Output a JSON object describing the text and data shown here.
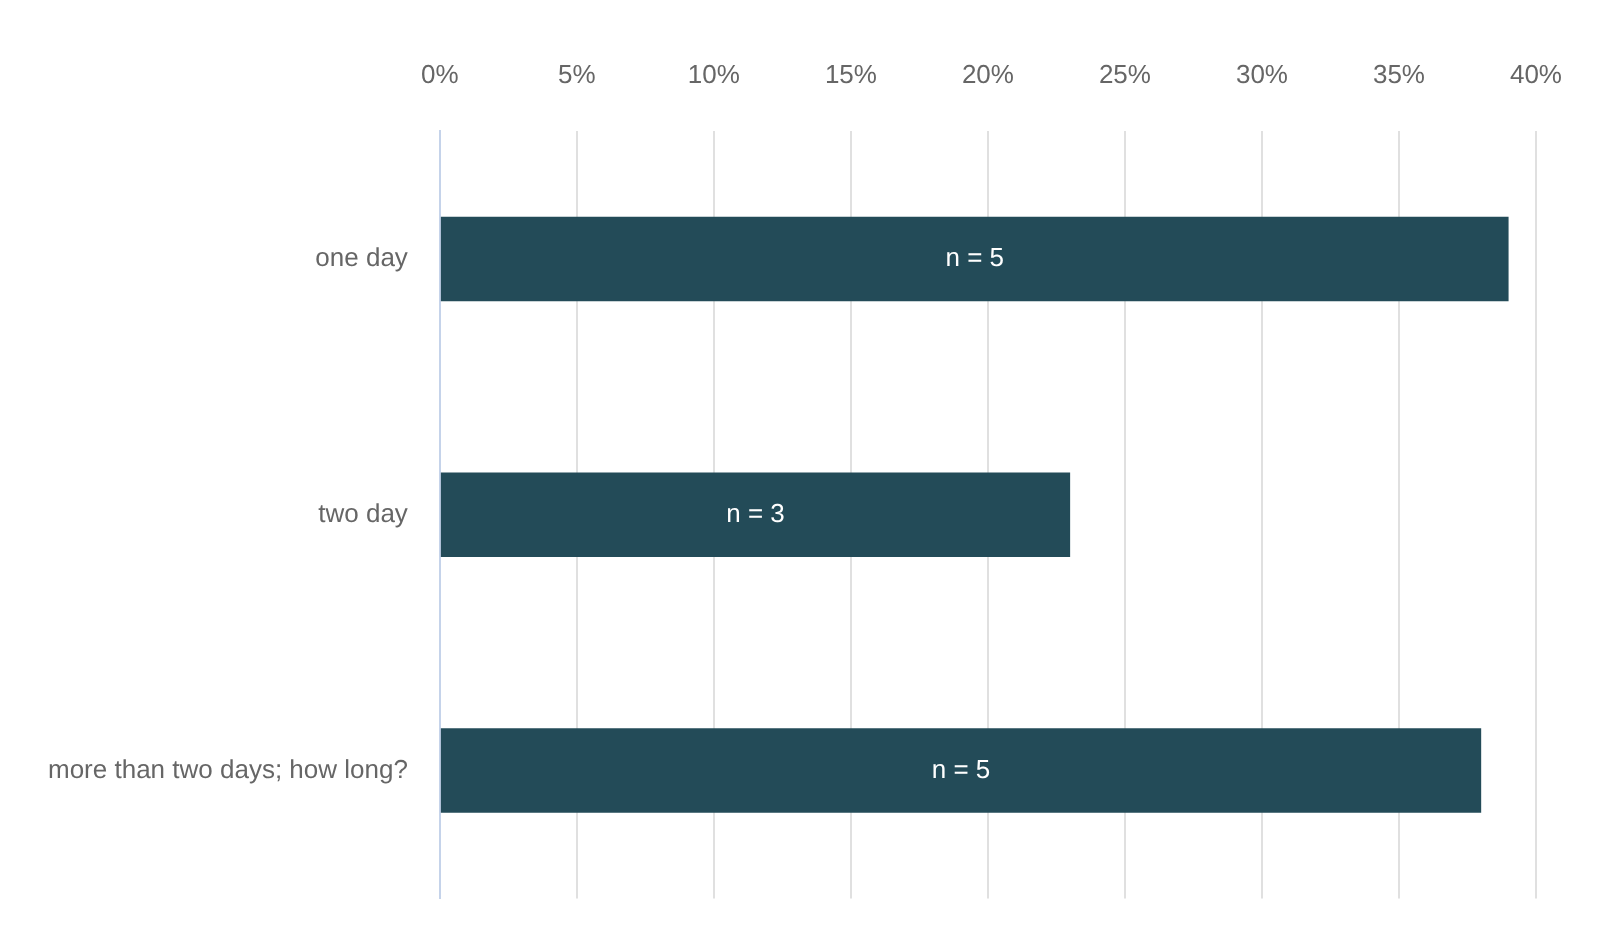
{
  "chart_data": {
    "type": "bar",
    "orientation": "horizontal",
    "categories": [
      "one day",
      "two day",
      "more than two days; how long?"
    ],
    "values": [
      39,
      23,
      38
    ],
    "color": "#234b58",
    "annotations": [
      "n = 5",
      "n = 3",
      "n = 5"
    ],
    "xlim": [
      0,
      40
    ],
    "xticks": [
      {
        "value": 0,
        "label": "0%"
      },
      {
        "value": 5,
        "label": "5%"
      },
      {
        "value": 10,
        "label": "10%"
      },
      {
        "value": 15,
        "label": "15%"
      },
      {
        "value": 20,
        "label": "20%"
      },
      {
        "value": 25,
        "label": "25%"
      },
      {
        "value": 30,
        "label": "30%"
      },
      {
        "value": 35,
        "label": "35%"
      },
      {
        "value": 40,
        "label": "40%"
      }
    ],
    "grid": "x",
    "legend": false
  }
}
